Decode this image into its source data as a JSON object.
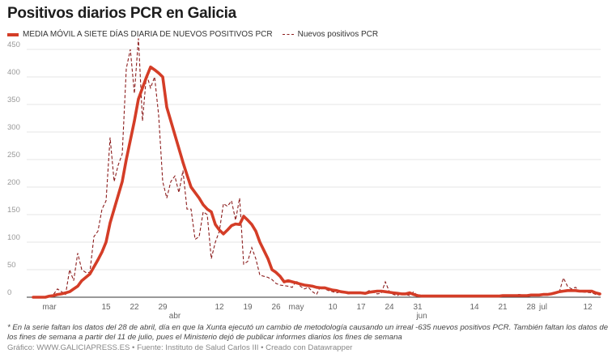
{
  "title": "Positivos diarios PCR en Galicia",
  "note": "* En la serie faltan los datos del 28 de abril, día en que la Xunta ejecutó un cambio de metodología causando un irreal -635 nuevos positivos PCR. También faltan los datos de los fines de semana a partir del 11 de julio, pues el Ministerio dejó de publicar informes diarios los fines de semana",
  "source": "Gráfico: WWW.GALICIAPRESS.ES • Fuente: Instituto de Salud Carlos III • Creado con Datawrapper",
  "colors": {
    "avg": "#d43d27",
    "daily": "#8b1c1c",
    "grid": "#e6e6e6",
    "axis": "#333333"
  },
  "chart_data": {
    "type": "line",
    "title": "Positivos diarios PCR en Galicia",
    "ylim": [
      0,
      470
    ],
    "yticks": [
      0,
      50,
      100,
      150,
      200,
      250,
      300,
      350,
      400,
      450
    ],
    "xticks": [
      {
        "date": "03-01",
        "label": "mar"
      },
      {
        "date": "03-15",
        "label": "15"
      },
      {
        "date": "03-22",
        "label": "22"
      },
      {
        "date": "03-29",
        "label": "29"
      },
      {
        "date": "04-01",
        "label": "abr"
      },
      {
        "date": "04-12",
        "label": "12"
      },
      {
        "date": "04-19",
        "label": "19"
      },
      {
        "date": "04-26",
        "label": "26"
      },
      {
        "date": "05-01",
        "label": "may"
      },
      {
        "date": "05-10",
        "label": "10"
      },
      {
        "date": "05-17",
        "label": "17"
      },
      {
        "date": "05-24",
        "label": "24"
      },
      {
        "date": "05-31",
        "label": "31"
      },
      {
        "date": "06-01",
        "label": "jun"
      },
      {
        "date": "06-14",
        "label": "14"
      },
      {
        "date": "06-21",
        "label": "21"
      },
      {
        "date": "06-28",
        "label": "28"
      },
      {
        "date": "07-01",
        "label": "jul"
      },
      {
        "date": "07-12",
        "label": "12"
      }
    ],
    "grid": true,
    "legend": "top-left",
    "months": [
      {
        "month": "02",
        "first_day": 26,
        "avg": [
          0,
          0,
          0,
          0
        ],
        "daily": [
          0,
          0,
          0,
          0
        ]
      },
      {
        "month": "03",
        "first_day": 1,
        "avg": [
          2,
          3,
          5,
          6,
          8,
          10,
          15,
          20,
          30,
          36,
          42,
          55,
          68,
          82,
          100,
          135,
          160,
          185,
          210,
          250,
          285,
          320,
          360,
          380,
          400,
          418,
          413,
          407,
          400,
          345,
          320
        ],
        "daily": [
          2,
          5,
          15,
          10,
          5,
          50,
          30,
          80,
          50,
          45,
          45,
          110,
          120,
          160,
          175,
          290,
          210,
          240,
          260,
          415,
          450,
          370,
          470,
          320,
          405,
          380,
          400,
          330,
          210,
          180,
          210
        ]
      },
      {
        "month": "04",
        "first_day": 1,
        "avg": [
          295,
          270,
          245,
          222,
          200,
          190,
          180,
          168,
          160,
          155,
          132,
          122,
          115,
          122,
          130,
          133,
          132,
          147,
          140,
          132,
          120,
          100,
          85,
          70,
          50,
          45,
          38,
          28,
          30,
          28
        ],
        "daily": [
          220,
          190,
          230,
          160,
          160,
          105,
          110,
          155,
          150,
          70,
          100,
          120,
          170,
          165,
          175,
          140,
          180,
          60,
          65,
          90,
          70,
          40,
          38,
          36,
          32,
          25,
          22,
          null,
          20,
          18
        ]
      },
      {
        "month": "05",
        "first_day": 1,
        "avg": [
          26,
          24,
          22,
          21,
          20,
          18,
          17,
          17,
          15,
          13,
          12,
          10,
          9,
          8,
          8,
          8,
          8,
          7,
          9,
          10,
          11,
          11,
          10,
          9,
          8,
          7,
          6,
          6,
          8,
          5,
          3
        ],
        "daily": [
          30,
          20,
          15,
          18,
          10,
          5,
          20,
          15,
          12,
          10,
          8,
          10,
          7,
          6,
          8,
          9,
          7,
          8,
          12,
          9,
          6,
          7,
          28,
          10,
          5,
          3,
          8,
          5,
          3,
          10,
          2
        ]
      },
      {
        "month": "06",
        "first_day": 1,
        "avg": [
          2,
          2,
          2,
          2,
          2,
          2,
          2,
          2,
          2,
          2,
          2,
          2,
          2,
          2,
          2,
          2,
          2,
          2,
          2,
          2,
          3,
          3,
          3,
          3,
          3,
          3,
          3,
          4,
          4,
          4
        ],
        "daily": [
          2,
          3,
          2,
          1,
          2,
          3,
          2,
          2,
          1,
          3,
          2,
          2,
          2,
          1,
          3,
          2,
          2,
          3,
          2,
          2,
          3,
          4,
          2,
          3,
          5,
          4,
          3,
          4,
          5,
          3
        ]
      },
      {
        "month": "07",
        "first_day": 1,
        "avg": [
          5,
          5,
          6,
          8,
          10,
          11,
          12,
          12,
          12,
          11,
          11,
          11,
          11,
          8,
          6
        ],
        "daily": [
          5,
          4,
          6,
          8,
          10,
          35,
          20,
          15,
          18,
          10,
          null,
          null,
          8,
          5,
          4
        ]
      }
    ],
    "series": [
      {
        "name": "MEDIA MÓVIL A SIETE DÍAS DIARIA DE NUEVOS POSITIVOS PCR",
        "key": "avg",
        "style": "solid"
      },
      {
        "name": "Nuevos positivos PCR",
        "key": "daily",
        "style": "dashed"
      }
    ]
  }
}
